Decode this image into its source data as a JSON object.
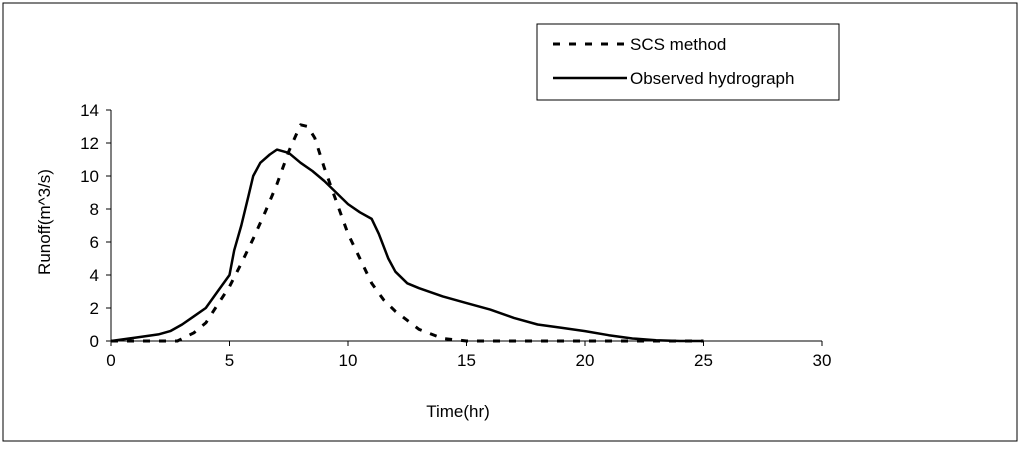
{
  "chart_data": {
    "type": "line",
    "title": "",
    "xlabel": "Time(hr)",
    "ylabel": "Runoff(m^3/s)",
    "xlim": [
      0,
      30
    ],
    "ylim": [
      0,
      14
    ],
    "x_ticks": [
      "0",
      "5",
      "10",
      "15",
      "20",
      "25",
      "30"
    ],
    "y_ticks": [
      "0",
      "2",
      "4",
      "6",
      "8",
      "10",
      "12",
      "14"
    ],
    "grid": false,
    "legend_position": "top-right",
    "series": [
      {
        "name": "SCS method",
        "style": "dashed",
        "color": "#000000",
        "x": [
          0,
          1,
          2,
          2.8,
          3.5,
          4,
          4.5,
          5,
          5.5,
          6,
          6.5,
          7,
          7.5,
          8,
          8.3,
          8.6,
          9,
          9.5,
          10,
          10.5,
          11,
          11.5,
          12,
          13,
          14,
          15,
          16,
          18,
          20,
          22,
          23,
          24,
          25
        ],
        "y": [
          0,
          0,
          0,
          0,
          0.5,
          1.1,
          2.2,
          3.3,
          4.7,
          6.2,
          7.8,
          9.5,
          11.5,
          13.1,
          13.0,
          12.3,
          10.5,
          8.5,
          6.5,
          5.0,
          3.5,
          2.5,
          1.8,
          0.7,
          0.15,
          0,
          0,
          0,
          0,
          0,
          0,
          0,
          0
        ]
      },
      {
        "name": "Observed hydrograph",
        "style": "solid",
        "color": "#000000",
        "x": [
          0,
          1,
          2,
          2.5,
          3,
          3.5,
          4,
          4.5,
          5,
          5.2,
          5.5,
          5.8,
          6,
          6.3,
          6.7,
          7,
          7.5,
          8,
          8.5,
          9,
          9.5,
          10,
          10.5,
          11,
          11.3,
          11.7,
          12,
          12.5,
          13,
          14,
          15,
          16,
          17,
          18,
          19,
          20,
          21,
          22,
          23,
          24,
          25
        ],
        "y": [
          0,
          0.2,
          0.4,
          0.6,
          1.0,
          1.5,
          2.0,
          3.0,
          4.0,
          5.5,
          7.0,
          8.8,
          10.0,
          10.8,
          11.3,
          11.6,
          11.4,
          10.8,
          10.3,
          9.7,
          9.0,
          8.3,
          7.8,
          7.4,
          6.5,
          5.0,
          4.2,
          3.5,
          3.2,
          2.7,
          2.3,
          1.9,
          1.4,
          1.0,
          0.8,
          0.6,
          0.35,
          0.15,
          0.05,
          0,
          0
        ]
      }
    ]
  }
}
